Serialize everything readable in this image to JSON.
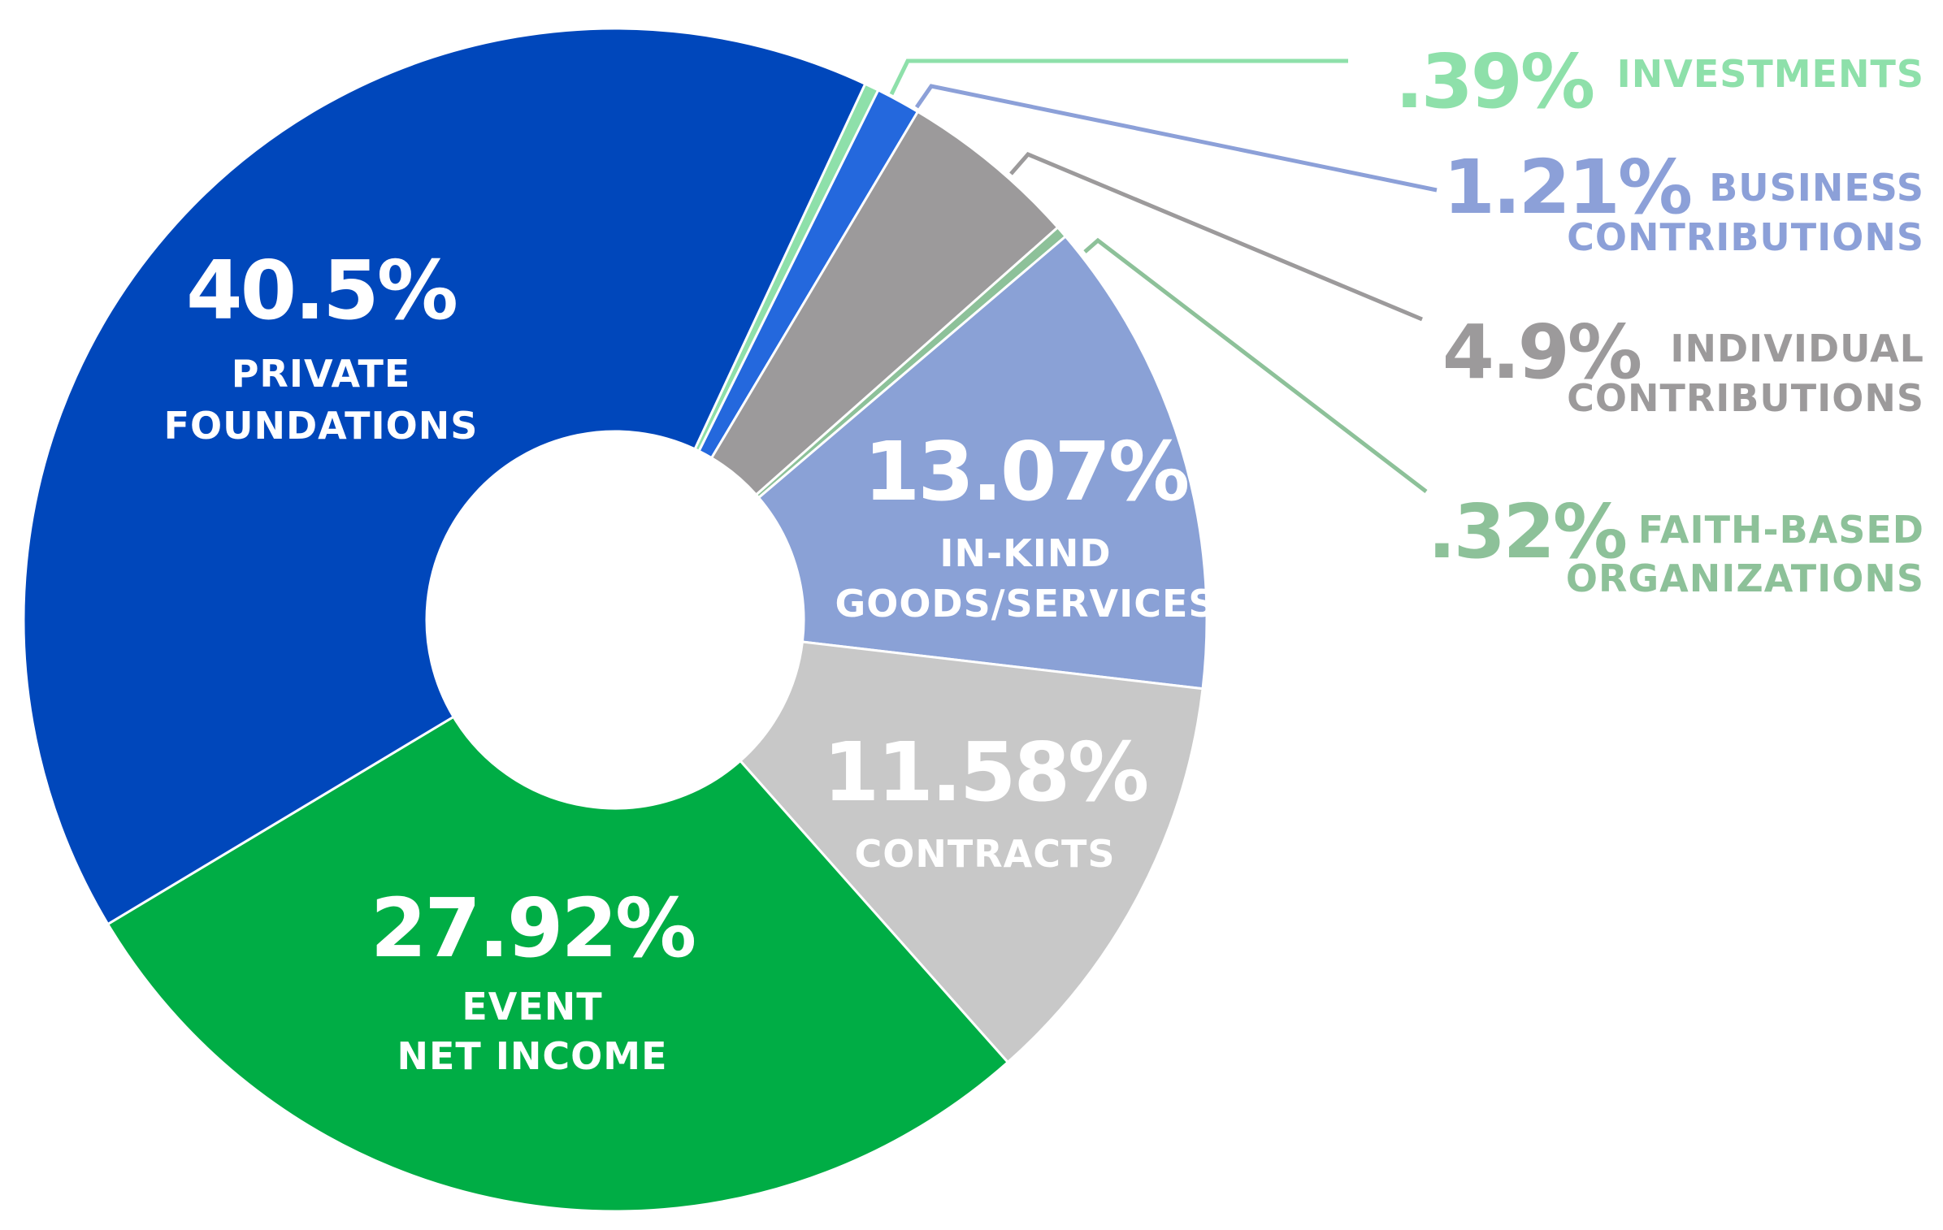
{
  "chart_data": {
    "type": "pie",
    "variant": "donut",
    "title": "",
    "slices": [
      {
        "key": "investments",
        "value": 0.39,
        "pct_label": ".39%",
        "label_lines": [
          "INVESTMENTS"
        ],
        "color": "#8ee0aa",
        "label_color": "#8ee0aa",
        "label_placement": "outside"
      },
      {
        "key": "business",
        "value": 1.21,
        "pct_label": "1.21%",
        "label_lines": [
          "BUSINESS",
          "CONTRIBUTIONS"
        ],
        "color": "#2468dd",
        "label_color": "#8ca0d8",
        "label_placement": "outside"
      },
      {
        "key": "individual",
        "value": 4.9,
        "pct_label": "4.9%",
        "label_lines": [
          "INDIVIDUAL",
          "CONTRIBUTIONS"
        ],
        "color": "#9c9a9b",
        "label_color": "#9c9a9b",
        "label_placement": "outside"
      },
      {
        "key": "faith",
        "value": 0.32,
        "pct_label": ".32%",
        "label_lines": [
          "FAITH-BASED",
          "ORGANIZATIONS"
        ],
        "color": "#8dc199",
        "label_color": "#8dc199",
        "label_placement": "outside"
      },
      {
        "key": "inkind",
        "value": 13.07,
        "pct_label": "13.07%",
        "label_lines": [
          "IN-KIND",
          "GOODS/SERVICES"
        ],
        "color": "#8aa1d6",
        "label_color": "#ffffff",
        "label_placement": "inside"
      },
      {
        "key": "contracts",
        "value": 11.58,
        "pct_label": "11.58%",
        "label_lines": [
          "CONTRACTS"
        ],
        "color": "#c8c8c8",
        "label_color": "#ffffff",
        "label_placement": "inside"
      },
      {
        "key": "event",
        "value": 27.92,
        "pct_label": "27.92%",
        "label_lines": [
          "EVENT",
          "NET INCOME"
        ],
        "color": "#00ad45",
        "label_color": "#ffffff",
        "label_placement": "inside"
      },
      {
        "key": "private",
        "value": 40.5,
        "pct_label": "40.5%",
        "label_lines": [
          "PRIVATE",
          "FOUNDATIONS"
        ],
        "color": "#0047bb",
        "label_color": "#ffffff",
        "label_placement": "inside"
      }
    ],
    "start_angle_deg": 25,
    "direction": "clockwise",
    "legend": "callouts-right"
  }
}
